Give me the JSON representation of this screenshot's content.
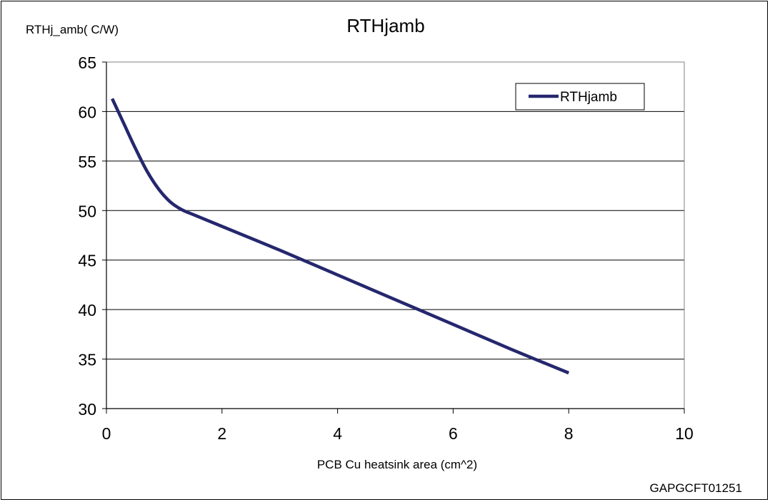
{
  "chart_data": {
    "type": "line",
    "title": "RTHjamb",
    "ylabel": "RTHj_amb(  C/W)",
    "xlabel": "PCB Cu heatsink area (cm^2)",
    "xlim": [
      0,
      10
    ],
    "ylim": [
      30,
      65
    ],
    "x_ticks": [
      0,
      2,
      4,
      6,
      8,
      10
    ],
    "y_ticks": [
      30,
      35,
      40,
      45,
      50,
      55,
      60,
      65
    ],
    "grid": "horizontal",
    "legend_position": "top-right",
    "series": [
      {
        "name": "RTHjamb",
        "color": "#25276e",
        "x": [
          0.1,
          0.3,
          0.5,
          0.7,
          0.9,
          1.1,
          1.3,
          1.5,
          2,
          3,
          4,
          5,
          6,
          7,
          8
        ],
        "y": [
          61.3,
          58.8,
          56.3,
          54.0,
          52.2,
          50.9,
          50.1,
          49.6,
          48.4,
          46.0,
          43.5,
          41.0,
          38.5,
          36.0,
          33.6
        ]
      }
    ]
  },
  "figure_id": "GAPGCFT01251"
}
